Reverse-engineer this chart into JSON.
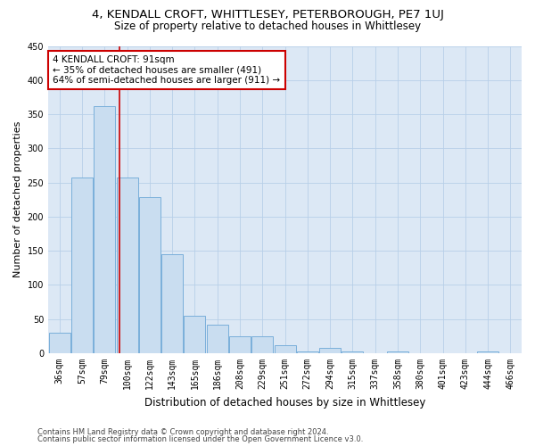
{
  "title": "4, KENDALL CROFT, WHITTLESEY, PETERBOROUGH, PE7 1UJ",
  "subtitle": "Size of property relative to detached houses in Whittlesey",
  "xlabel": "Distribution of detached houses by size in Whittlesey",
  "ylabel": "Number of detached properties",
  "categories": [
    "36sqm",
    "57sqm",
    "79sqm",
    "100sqm",
    "122sqm",
    "143sqm",
    "165sqm",
    "186sqm",
    "208sqm",
    "229sqm",
    "251sqm",
    "272sqm",
    "294sqm",
    "315sqm",
    "337sqm",
    "358sqm",
    "380sqm",
    "401sqm",
    "423sqm",
    "444sqm",
    "466sqm"
  ],
  "values": [
    30,
    258,
    362,
    258,
    228,
    145,
    55,
    42,
    25,
    25,
    12,
    3,
    8,
    3,
    0,
    3,
    0,
    0,
    0,
    3,
    0
  ],
  "bar_color": "#c9ddf0",
  "bar_edge_color": "#7aafda",
  "vline_x": 2.65,
  "vline_color": "#cc0000",
  "annotation_text": "4 KENDALL CROFT: 91sqm\n← 35% of detached houses are smaller (491)\n64% of semi-detached houses are larger (911) →",
  "annotation_box_color": "#ffffff",
  "annotation_box_edge": "#cc0000",
  "ylim": [
    0,
    450
  ],
  "yticks": [
    0,
    50,
    100,
    150,
    200,
    250,
    300,
    350,
    400,
    450
  ],
  "footer1": "Contains HM Land Registry data © Crown copyright and database right 2024.",
  "footer2": "Contains public sector information licensed under the Open Government Licence v3.0.",
  "bg_color": "#ffffff",
  "plot_bg_color": "#dce8f5",
  "grid_color": "#b8cfe8",
  "title_fontsize": 9.5,
  "subtitle_fontsize": 8.5,
  "tick_fontsize": 7,
  "ylabel_fontsize": 8,
  "xlabel_fontsize": 8.5,
  "annot_fontsize": 7.5
}
